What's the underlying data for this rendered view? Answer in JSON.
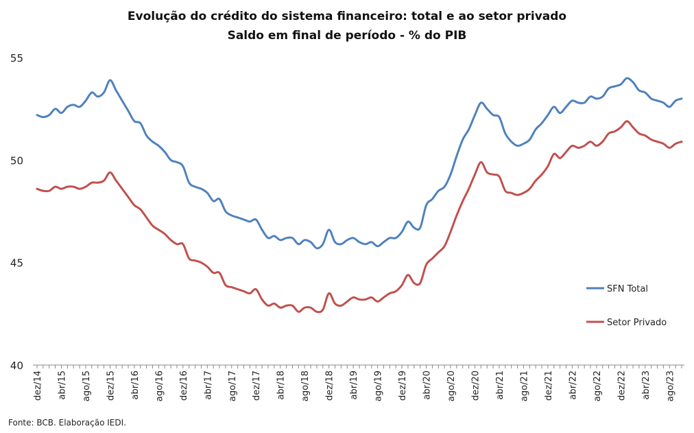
{
  "chart_data": {
    "type": "line",
    "title": "Evolução do crédito do sistema financeiro: total e ao setor privado",
    "subtitle": "Saldo em final de período -  % do PIB",
    "xlabel": "",
    "ylabel": "",
    "ylim": [
      40,
      55
    ],
    "yticks": [
      40,
      45,
      50,
      55
    ],
    "grid": false,
    "legend_position": "right",
    "x_tick_labels": [
      "dez/14",
      "abr/15",
      "ago/15",
      "dez/15",
      "abr/16",
      "ago/16",
      "dez/16",
      "abr/17",
      "ago/17",
      "dez/17",
      "abr/18",
      "ago/18",
      "dez/18",
      "abr/19",
      "ago/19",
      "dez/19",
      "abr/20",
      "ago/20",
      "dez/20",
      "abr/21",
      "ago/21",
      "dez/21",
      "abr/22",
      "ago/22",
      "dez/22",
      "abr/23",
      "ago/23"
    ],
    "x": [
      "dez/14",
      "jan/15",
      "fev/15",
      "mar/15",
      "abr/15",
      "mai/15",
      "jun/15",
      "jul/15",
      "ago/15",
      "set/15",
      "out/15",
      "nov/15",
      "dez/15",
      "jan/16",
      "fev/16",
      "mar/16",
      "abr/16",
      "mai/16",
      "jun/16",
      "jul/16",
      "ago/16",
      "set/16",
      "out/16",
      "nov/16",
      "dez/16",
      "jan/17",
      "fev/17",
      "mar/17",
      "abr/17",
      "mai/17",
      "jun/17",
      "jul/17",
      "ago/17",
      "set/17",
      "out/17",
      "nov/17",
      "dez/17",
      "jan/18",
      "fev/18",
      "mar/18",
      "abr/18",
      "mai/18",
      "jun/18",
      "jul/18",
      "ago/18",
      "set/18",
      "out/18",
      "nov/18",
      "dez/18",
      "jan/19",
      "fev/19",
      "mar/19",
      "abr/19",
      "mai/19",
      "jun/19",
      "jul/19",
      "ago/19",
      "set/19",
      "out/19",
      "nov/19",
      "dez/19",
      "jan/20",
      "fev/20",
      "mar/20",
      "abr/20",
      "mai/20",
      "jun/20",
      "jul/20",
      "ago/20",
      "set/20",
      "out/20",
      "nov/20",
      "dez/20",
      "jan/21",
      "fev/21",
      "mar/21",
      "abr/21",
      "mai/21",
      "jun/21",
      "jul/21",
      "ago/21",
      "set/21",
      "out/21",
      "nov/21",
      "dez/21",
      "jan/22",
      "fev/22",
      "mar/22",
      "abr/22",
      "mai/22",
      "jun/22",
      "jul/22",
      "ago/22",
      "set/22",
      "out/22",
      "nov/22",
      "dez/22",
      "jan/23",
      "fev/23",
      "mar/23",
      "abr/23",
      "mai/23",
      "jun/23",
      "jul/23",
      "ago/23",
      "set/23",
      "out/23"
    ],
    "series": [
      {
        "name": "SFN Total",
        "color": "#4F81BD",
        "values": [
          52.2,
          52.1,
          52.2,
          52.5,
          52.3,
          52.6,
          52.7,
          52.6,
          52.9,
          53.3,
          53.1,
          53.3,
          53.9,
          53.4,
          52.9,
          52.4,
          51.9,
          51.8,
          51.2,
          50.9,
          50.7,
          50.4,
          50.0,
          49.9,
          49.7,
          48.9,
          48.7,
          48.6,
          48.4,
          48.0,
          48.1,
          47.5,
          47.3,
          47.2,
          47.1,
          47.0,
          47.1,
          46.6,
          46.2,
          46.3,
          46.1,
          46.2,
          46.2,
          45.9,
          46.1,
          46.0,
          45.7,
          45.9,
          46.6,
          46.0,
          45.9,
          46.1,
          46.2,
          46.0,
          45.9,
          46.0,
          45.8,
          46.0,
          46.2,
          46.2,
          46.5,
          47.0,
          46.7,
          46.7,
          47.8,
          48.1,
          48.5,
          48.7,
          49.3,
          50.2,
          51.0,
          51.5,
          52.2,
          52.8,
          52.5,
          52.2,
          52.1,
          51.3,
          50.9,
          50.7,
          50.8,
          51.0,
          51.5,
          51.8,
          52.2,
          52.6,
          52.3,
          52.6,
          52.9,
          52.8,
          52.8,
          53.1,
          53.0,
          53.1,
          53.5,
          53.6,
          53.7,
          54.0,
          53.8,
          53.4,
          53.3,
          53.0,
          52.9,
          52.8,
          52.6,
          52.9,
          53.0
        ]
      },
      {
        "name": "Setor Privado",
        "color": "#C0504D",
        "values": [
          48.6,
          48.5,
          48.5,
          48.7,
          48.6,
          48.7,
          48.7,
          48.6,
          48.7,
          48.9,
          48.9,
          49.0,
          49.4,
          49.0,
          48.6,
          48.2,
          47.8,
          47.6,
          47.2,
          46.8,
          46.6,
          46.4,
          46.1,
          45.9,
          45.9,
          45.2,
          45.1,
          45.0,
          44.8,
          44.5,
          44.5,
          43.9,
          43.8,
          43.7,
          43.6,
          43.5,
          43.7,
          43.2,
          42.9,
          43.0,
          42.8,
          42.9,
          42.9,
          42.6,
          42.8,
          42.8,
          42.6,
          42.7,
          43.5,
          43.0,
          42.9,
          43.1,
          43.3,
          43.2,
          43.2,
          43.3,
          43.1,
          43.3,
          43.5,
          43.6,
          43.9,
          44.4,
          44.0,
          44.0,
          44.9,
          45.2,
          45.5,
          45.8,
          46.5,
          47.3,
          48.0,
          48.6,
          49.3,
          49.9,
          49.4,
          49.3,
          49.2,
          48.5,
          48.4,
          48.3,
          48.4,
          48.6,
          49.0,
          49.3,
          49.7,
          50.3,
          50.1,
          50.4,
          50.7,
          50.6,
          50.7,
          50.9,
          50.7,
          50.9,
          51.3,
          51.4,
          51.6,
          51.9,
          51.6,
          51.3,
          51.2,
          51.0,
          50.9,
          50.8,
          50.6,
          50.8,
          50.9
        ]
      }
    ],
    "source_note": "Fonte: BCB. Elaboração IEDI."
  }
}
